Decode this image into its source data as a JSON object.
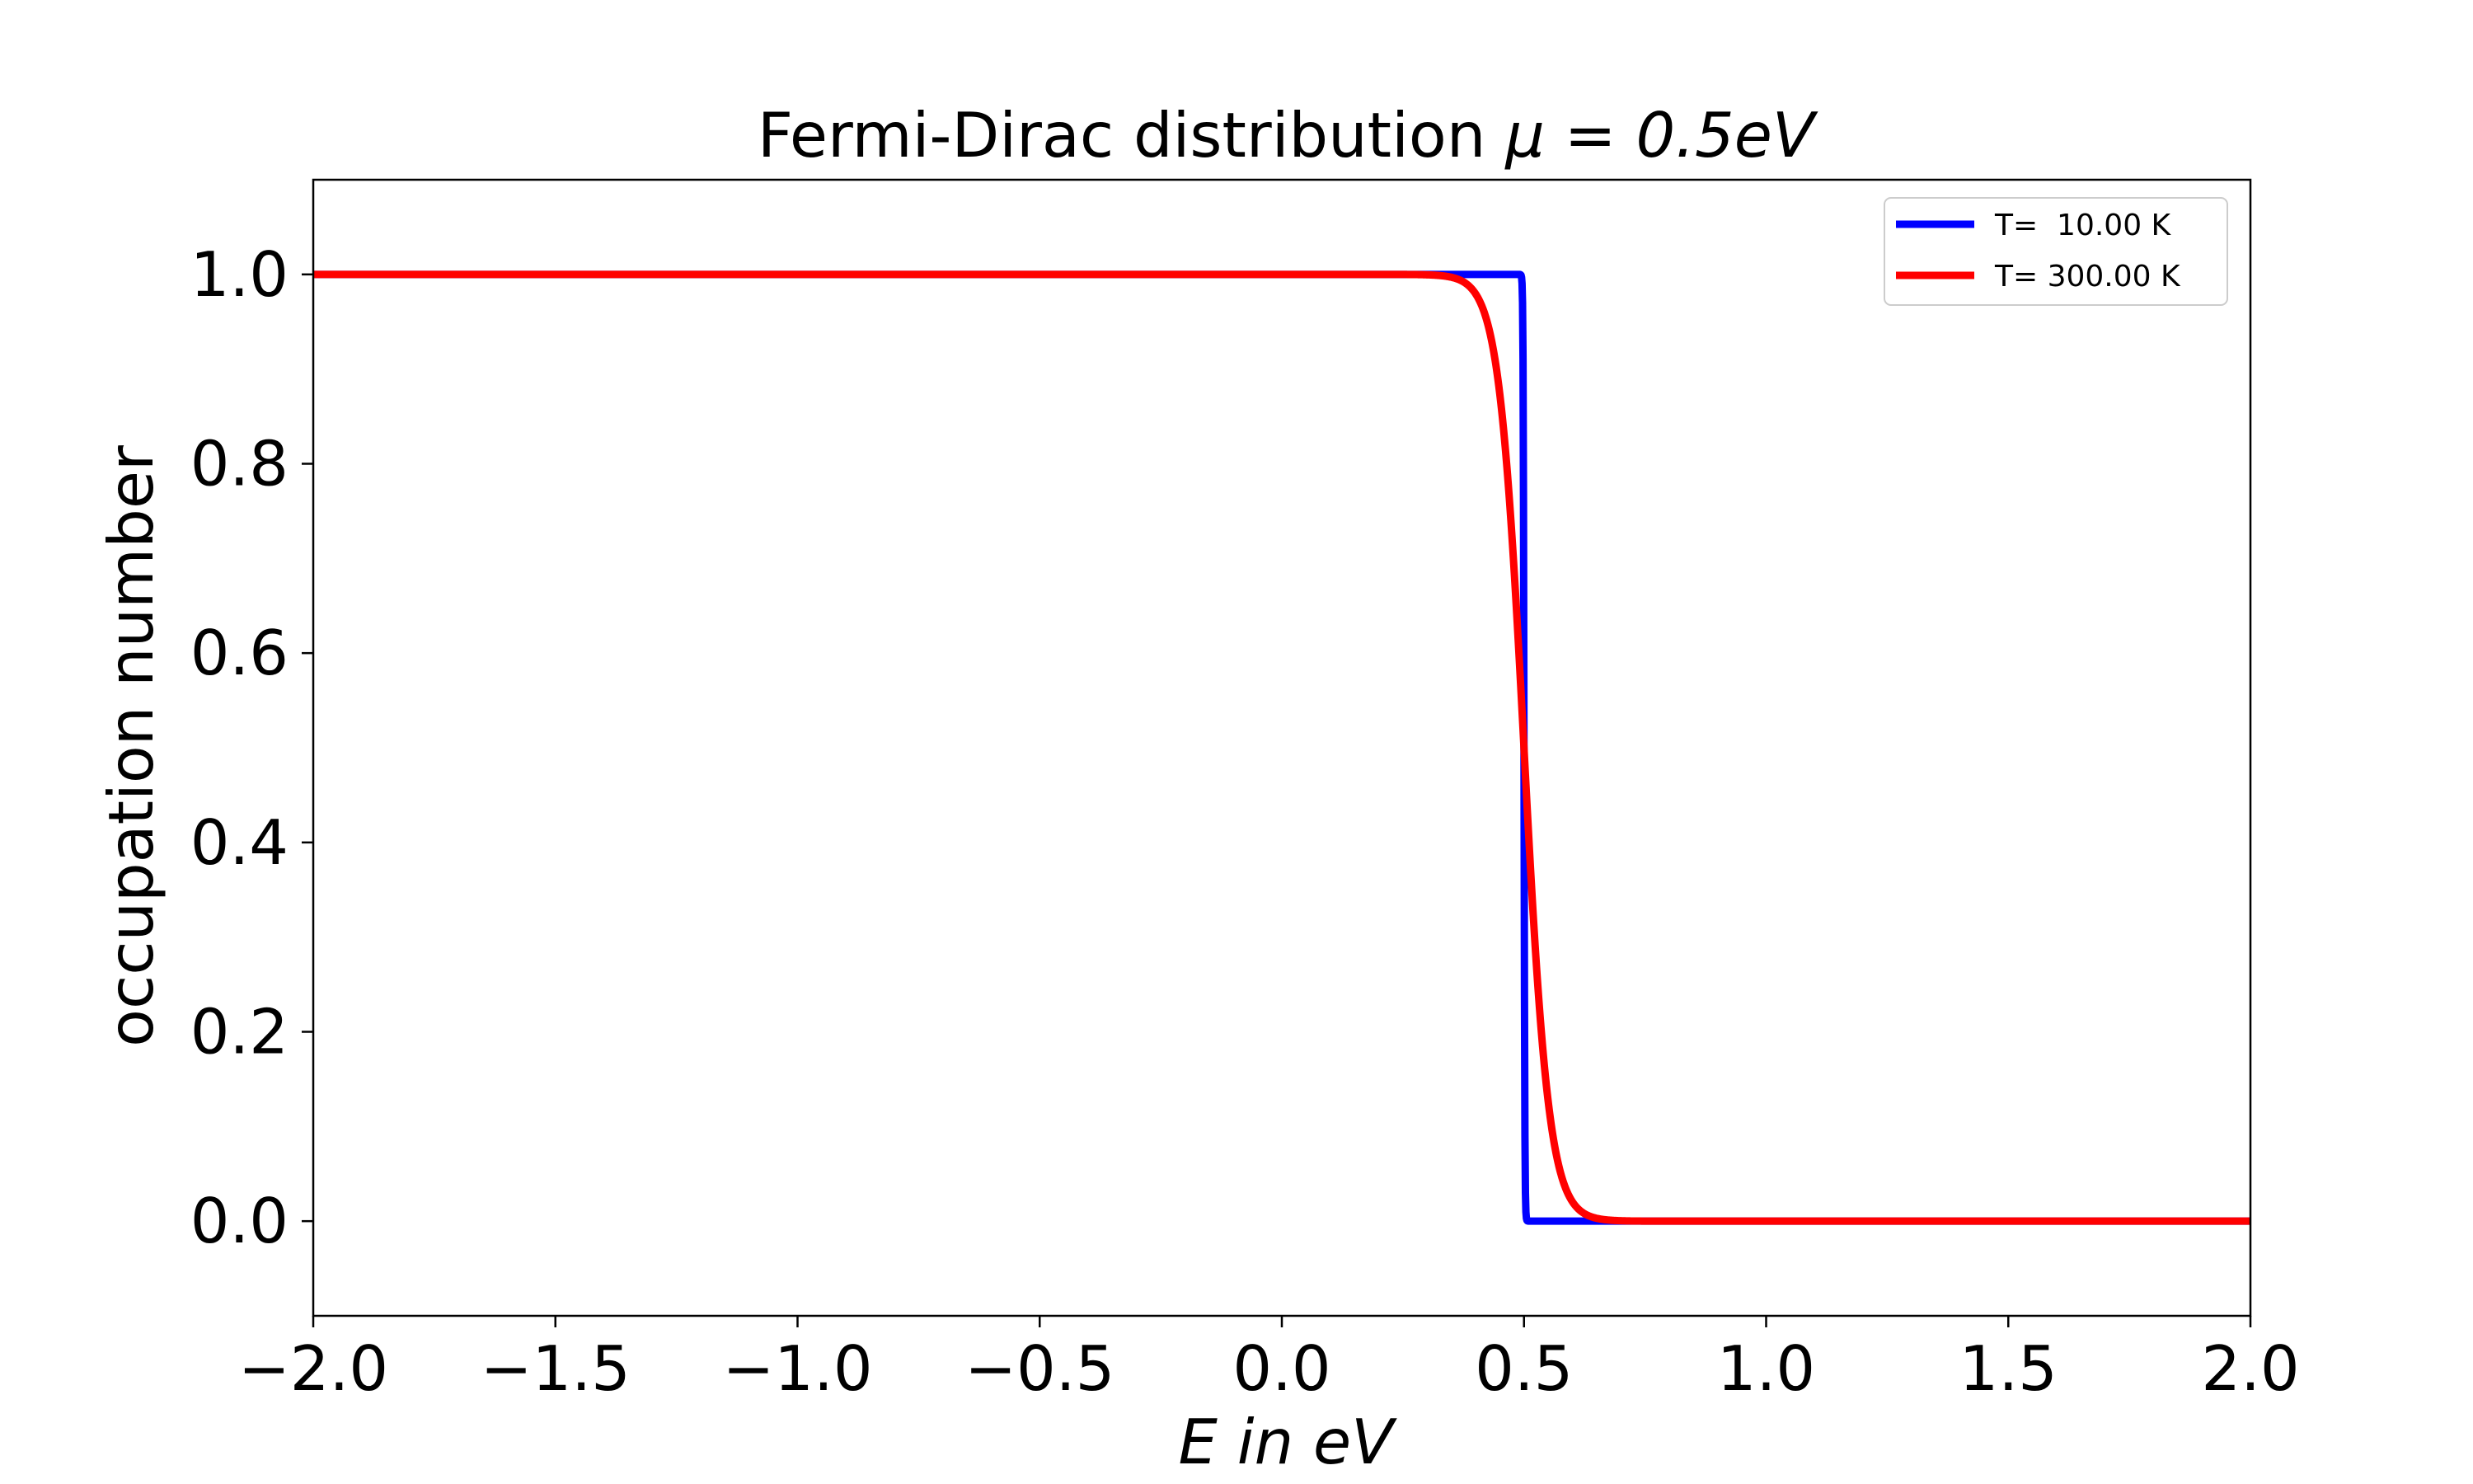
{
  "chart_data": {
    "type": "line",
    "title": "Fermi-Dirac distribution μ = 0.5eV",
    "title_main": "Fermi-Dirac distribution ",
    "title_math": "μ = 0.5eV",
    "xlabel": "E in eV",
    "ylabel": "occupation number",
    "xlim": [
      -2.0,
      2.0
    ],
    "ylim": [
      -0.1,
      1.1
    ],
    "x_ticks": [
      -2.0,
      -1.5,
      -1.0,
      -0.5,
      0.0,
      0.5,
      1.0,
      1.5,
      2.0
    ],
    "x_tick_labels": [
      "−2.0",
      "−1.5",
      "−1.0",
      "−0.5",
      "0.0",
      "0.5",
      "1.0",
      "1.5",
      "2.0"
    ],
    "y_ticks": [
      0.0,
      0.2,
      0.4,
      0.6,
      0.8,
      1.0
    ],
    "y_tick_labels": [
      "0.0",
      "0.2",
      "0.4",
      "0.6",
      "0.8",
      "1.0"
    ],
    "grid": false,
    "legend_position": "top-right",
    "mu": 0.5,
    "series": [
      {
        "name": "T=  10.00 K",
        "temperature_K": 10,
        "color": "#0000ff"
      },
      {
        "name": "T= 300.00 K",
        "temperature_K": 300,
        "color": "#ff0000"
      }
    ]
  }
}
